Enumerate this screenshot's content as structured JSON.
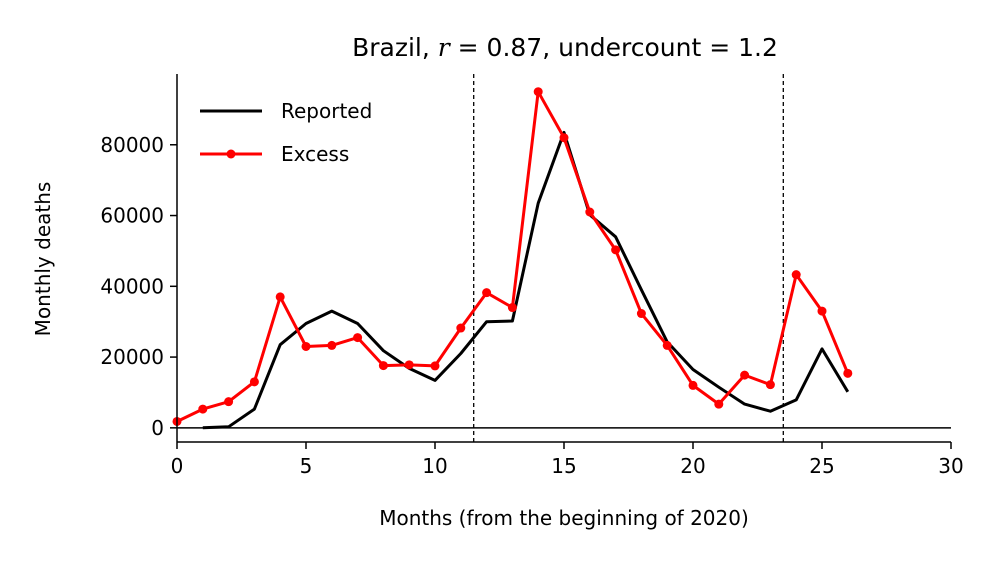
{
  "chart_data": {
    "type": "line",
    "title": {
      "prefix": "Brazil, ",
      "r_symbol": "r",
      "r_text": " = 0.87, undercount = 1.2"
    },
    "xlabel": "Months (from the beginning of 2020)",
    "ylabel": "Monthly deaths",
    "xlim": [
      0,
      30
    ],
    "ylim": [
      -4000,
      100000
    ],
    "xticks": [
      0,
      5,
      10,
      15,
      20,
      25,
      30
    ],
    "yticks": [
      0,
      20000,
      40000,
      60000,
      80000
    ],
    "vlines": [
      11.5,
      23.5
    ],
    "hline": 0,
    "legend_position": "top-left",
    "grid": false,
    "series": [
      {
        "name": "Reported",
        "color": "#000000",
        "marker": false,
        "x": [
          1,
          2,
          3,
          4,
          5,
          6,
          7,
          8,
          9,
          10,
          11,
          12,
          13,
          14,
          15,
          16,
          17,
          18,
          19,
          20,
          21,
          22,
          23,
          24,
          25,
          26
        ],
        "y": [
          0,
          300,
          5300,
          23500,
          29500,
          33000,
          29500,
          21800,
          16800,
          13400,
          21000,
          30000,
          30200,
          63500,
          83500,
          60200,
          54000,
          39000,
          24300,
          16500,
          11500,
          6700,
          4700,
          7900,
          22300,
          10200
        ]
      },
      {
        "name": "Excess",
        "color": "#ff0000",
        "marker": true,
        "x": [
          0,
          1,
          2,
          3,
          4,
          5,
          6,
          7,
          8,
          9,
          10,
          11,
          12,
          13,
          14,
          15,
          16,
          17,
          18,
          19,
          20,
          21,
          22,
          23,
          24,
          25,
          26
        ],
        "y": [
          1800,
          5300,
          7400,
          13000,
          37000,
          23000,
          23300,
          25500,
          17600,
          17800,
          17500,
          28200,
          38200,
          34000,
          95000,
          82000,
          61000,
          50300,
          32300,
          23300,
          12000,
          6700,
          14900,
          12200,
          43300,
          33000,
          15400
        ]
      }
    ]
  }
}
